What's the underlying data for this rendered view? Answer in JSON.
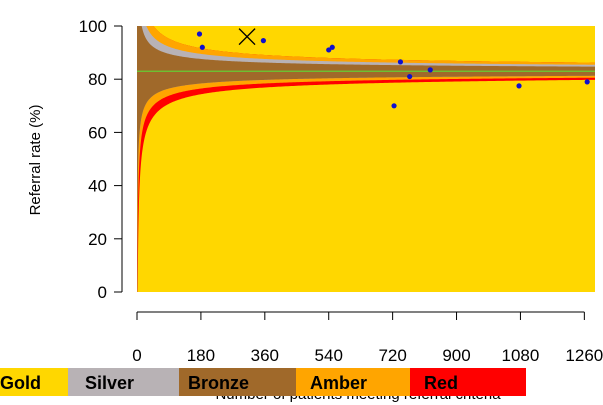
{
  "chart_data": {
    "type": "scatter",
    "xlabel": "Number of patients meeting referral criteria",
    "ylabel": "Referral rate (%)",
    "xlim": [
      0,
      1290
    ],
    "ylim": [
      0,
      100
    ],
    "xticks": [
      0,
      180,
      360,
      540,
      720,
      900,
      1080,
      1260
    ],
    "yticks": [
      0,
      20,
      40,
      60,
      80,
      100
    ],
    "target_line": 83,
    "bands": [
      {
        "name": "Gold",
        "color": "#FFD700"
      },
      {
        "name": "Silver",
        "color": "#B8B2B5"
      },
      {
        "name": "Bronze",
        "color": "#A0692A"
      },
      {
        "name": "Amber",
        "color": "#FFA500"
      },
      {
        "name": "Red",
        "color": "#FF0000"
      }
    ],
    "target_line_color": "#66CC33",
    "point_color": "#1010CC",
    "points": [
      {
        "x": 176,
        "y": 97
      },
      {
        "x": 184,
        "y": 92
      },
      {
        "x": 356,
        "y": 94.5
      },
      {
        "x": 540,
        "y": 91
      },
      {
        "x": 550,
        "y": 92
      },
      {
        "x": 724,
        "y": 70
      },
      {
        "x": 742,
        "y": 86.5
      },
      {
        "x": 768,
        "y": 81
      },
      {
        "x": 826,
        "y": 83.5
      },
      {
        "x": 1076,
        "y": 77.5
      },
      {
        "x": 1268,
        "y": 79
      }
    ],
    "highlight": {
      "x": 310,
      "y": 96,
      "marker": "x-cross"
    }
  },
  "legend": {
    "items": [
      "Gold",
      "Silver",
      "Bronze",
      "Amber",
      "Red"
    ]
  }
}
